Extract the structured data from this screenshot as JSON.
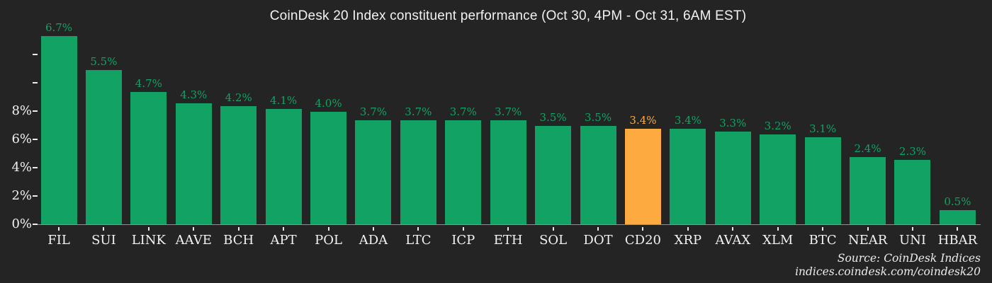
{
  "chart_data": {
    "type": "bar",
    "title": "CoinDesk 20 Index constituent performance (Oct 30, 4PM - Oct 31, 6AM EST)",
    "categories": [
      "FIL",
      "SUI",
      "LINK",
      "AAVE",
      "BCH",
      "APT",
      "POL",
      "ADA",
      "LTC",
      "ICP",
      "ETH",
      "SOL",
      "DOT",
      "CD20",
      "XRP",
      "AVAX",
      "XLM",
      "BTC",
      "NEAR",
      "UNI",
      "HBAR"
    ],
    "values": [
      6.7,
      5.5,
      4.7,
      4.3,
      4.2,
      4.1,
      4.0,
      3.7,
      3.7,
      3.7,
      3.7,
      3.5,
      3.5,
      3.4,
      3.4,
      3.3,
      3.2,
      3.1,
      2.4,
      2.3,
      0.5
    ],
    "value_labels": [
      "6.7%",
      "5.5%",
      "4.7%",
      "4.3%",
      "4.2%",
      "4.1%",
      "4.0%",
      "3.7%",
      "3.7%",
      "3.7%",
      "3.7%",
      "3.5%",
      "3.5%",
      "3.4%",
      "3.4%",
      "3.3%",
      "3.2%",
      "3.1%",
      "2.4%",
      "2.3%",
      "0.5%"
    ],
    "bar_color": "#12a263",
    "highlight": {
      "category": "CD20",
      "color": "#fdab40"
    },
    "background_color": "#242424",
    "y_axis": {
      "tick_labels": [
        "",
        "",
        "8%",
        "6%",
        "4%",
        "2%",
        "0%"
      ]
    },
    "grid": "off",
    "legend": "none",
    "source": {
      "line1": "Source: CoinDesk Indices",
      "line2": "indices.coindesk.com/coindesk20"
    }
  }
}
